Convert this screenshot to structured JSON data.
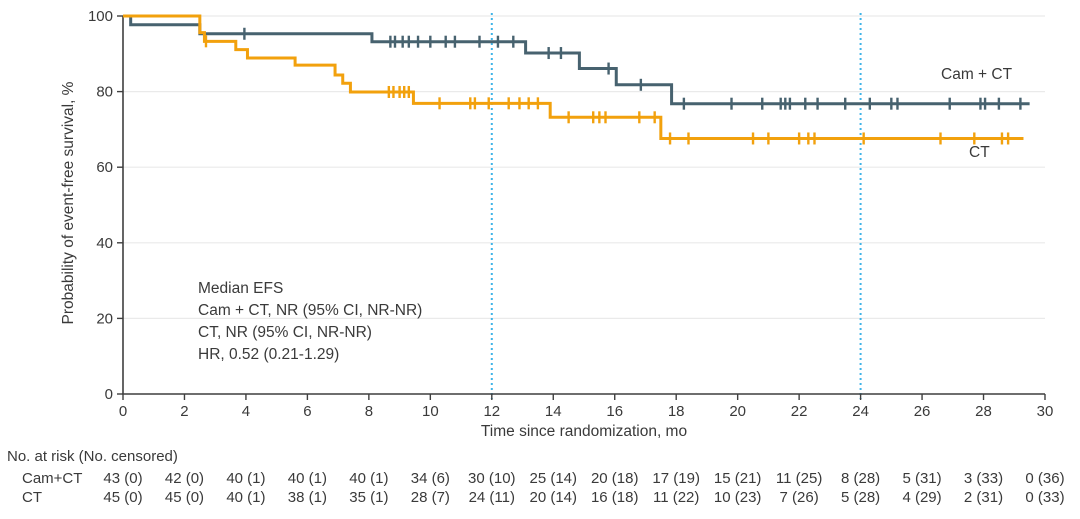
{
  "figure": {
    "background": "#FFFFFF",
    "text_color": "#3A3A3A",
    "axis_color": "#3F3F3F",
    "grid_color": "#EAEAEA"
  },
  "chart_data": {
    "type": "line",
    "subtype": "kaplan_meier_step_survival",
    "title": "",
    "x_axis": {
      "label": "Time since randomization, mo",
      "range": [
        0,
        30
      ],
      "ticks": [
        0,
        2,
        4,
        6,
        8,
        10,
        12,
        14,
        16,
        18,
        20,
        22,
        24,
        26,
        28,
        30
      ]
    },
    "y_axis": {
      "label": "Probability of event-free survival, %",
      "range": [
        0,
        100
      ],
      "ticks": [
        0,
        20,
        40,
        60,
        80,
        100
      ]
    },
    "reference_lines": {
      "x_values": [
        12,
        24
      ],
      "style": "dotted",
      "color": "#3FB4E8"
    },
    "series": [
      {
        "name": "Cam + CT",
        "color": "#47626F",
        "steps": [
          [
            0,
            100
          ],
          [
            0.25,
            97.7
          ],
          [
            2.5,
            95.3
          ],
          [
            8.1,
            93.2
          ],
          [
            13.1,
            90.2
          ],
          [
            14.85,
            86.1
          ],
          [
            16.05,
            81.8
          ],
          [
            17.85,
            76.8
          ]
        ],
        "end_x": 29.5,
        "censor_times": [
          3.95,
          8.7,
          8.85,
          9.1,
          9.3,
          9.6,
          10.0,
          10.5,
          10.8,
          11.6,
          12.2,
          12.7,
          13.85,
          14.25,
          15.8,
          16.85,
          18.25,
          19.8,
          20.8,
          21.4,
          21.55,
          21.7,
          22.2,
          22.6,
          23.5,
          24.3,
          25.0,
          25.2,
          26.9,
          27.9,
          28.05,
          28.5,
          29.2
        ]
      },
      {
        "name": "CT",
        "color": "#F2A10D",
        "steps": [
          [
            0,
            100
          ],
          [
            2.5,
            95.6
          ],
          [
            2.65,
            93.3
          ],
          [
            3.67,
            91.1
          ],
          [
            4.05,
            88.9
          ],
          [
            5.6,
            87.0
          ],
          [
            6.9,
            84.4
          ],
          [
            7.15,
            82.2
          ],
          [
            7.4,
            79.9
          ],
          [
            9.45,
            76.9
          ],
          [
            13.9,
            73.2
          ],
          [
            17.5,
            67.6
          ]
        ],
        "end_x": 29.3,
        "censor_times": [
          2.7,
          8.65,
          8.8,
          9.0,
          9.15,
          9.3,
          10.3,
          11.3,
          11.45,
          11.9,
          12.55,
          12.9,
          13.2,
          13.5,
          14.5,
          15.3,
          15.5,
          15.7,
          16.8,
          17.3,
          17.8,
          18.4,
          20.5,
          21.0,
          22.0,
          22.3,
          22.5,
          24.1,
          26.6,
          27.7,
          28.6,
          28.8
        ]
      }
    ],
    "curve_label_positions": [
      {
        "x": 941,
        "y": 66
      },
      {
        "x": 969,
        "y": 144
      }
    ],
    "annotation": {
      "lines": [
        "Median EFS",
        "Cam + CT, NR (95% CI, NR-NR)",
        "CT, NR (95% CI, NR-NR)",
        "HR, 0.52 (0.21-1.29)"
      ]
    },
    "risk_table": {
      "header": "No. at risk (No. censored)",
      "time_points": [
        0,
        2,
        4,
        6,
        8,
        10,
        12,
        14,
        16,
        18,
        20,
        22,
        24,
        26,
        28,
        30
      ],
      "rows": [
        {
          "label": "Cam+CT",
          "values": [
            "43 (0)",
            "42 (0)",
            "40 (1)",
            "40 (1)",
            "40 (1)",
            "34 (6)",
            "30 (10)",
            "25 (14)",
            "20 (18)",
            "17 (19)",
            "15 (21)",
            "11 (25)",
            "8 (28)",
            "5 (31)",
            "3 (33)",
            "0 (36)"
          ]
        },
        {
          "label": "CT",
          "values": [
            "45 (0)",
            "45 (0)",
            "40 (1)",
            "38 (1)",
            "35 (1)",
            "28 (7)",
            "24 (11)",
            "20 (14)",
            "16 (18)",
            "11 (22)",
            "10 (23)",
            "7 (26)",
            "5 (28)",
            "4 (29)",
            "2 (31)",
            "0 (33)"
          ]
        }
      ]
    }
  }
}
